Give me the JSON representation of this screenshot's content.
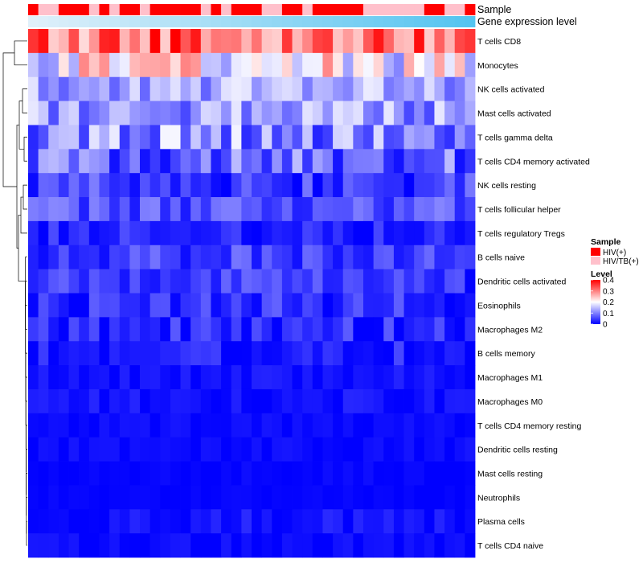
{
  "chart_data": {
    "type": "heatmap",
    "annotation_labels": {
      "sample": "Sample",
      "gene_expression_level": "Gene expression level"
    },
    "rows": [
      "T cells CD8",
      "Monocytes",
      "NK cells activated",
      "Mast cells activated",
      "T cells gamma delta",
      "T cells CD4 memory activated",
      "NK cells resting",
      "T cells follicular helper",
      "T cells regulatory  Tregs",
      "B cells naive",
      "Dendritic cells activated",
      "Eosinophils",
      "Macrophages M2",
      "B cells memory",
      "Macrophages M1",
      "Macrophages M0",
      "T cells CD4 memory resting",
      "Dendritic cells resting",
      "Mast cells resting",
      "Neutrophils",
      "Plasma cells",
      "T cells CD4 naive"
    ],
    "column_count": 44,
    "sample_annotation": [
      0,
      1,
      1,
      0,
      0,
      0,
      1,
      0,
      1,
      0,
      0,
      1,
      0,
      0,
      0,
      0,
      0,
      1,
      0,
      1,
      0,
      0,
      0,
      1,
      1,
      0,
      0,
      1,
      0,
      0,
      0,
      0,
      0,
      1,
      1,
      1,
      1,
      1,
      1,
      0,
      0,
      1,
      1,
      0
    ],
    "sample_legend": {
      "title": "Sample",
      "categories": [
        "HIV(+)",
        "HIV/TB(+)"
      ],
      "colors": [
        "#ff0000",
        "#ffc0cb"
      ]
    },
    "level_legend": {
      "title": "Level",
      "ticks": [
        "0.4",
        "0.3",
        "0.2",
        "0.1",
        "0"
      ],
      "tick_values": [
        0.4,
        0.3,
        0.2,
        0.1,
        0
      ],
      "range": [
        0,
        0.4
      ],
      "colors": [
        "#0000ff",
        "#ffffff",
        "#ff0000"
      ]
    },
    "row_means": [
      0.31,
      0.2,
      0.13,
      0.12,
      0.11,
      0.08,
      0.05,
      0.06,
      0.03,
      0.05,
      0.04,
      0.035,
      0.03,
      0.025,
      0.012,
      0.012,
      0.006,
      0.007,
      0.004,
      0.003,
      0.013,
      0.006
    ],
    "row_spread": [
      0.07,
      0.07,
      0.04,
      0.045,
      0.06,
      0.05,
      0.04,
      0.035,
      0.025,
      0.03,
      0.03,
      0.03,
      0.03,
      0.025,
      0.012,
      0.014,
      0.008,
      0.008,
      0.005,
      0.004,
      0.015,
      0.01
    ]
  }
}
